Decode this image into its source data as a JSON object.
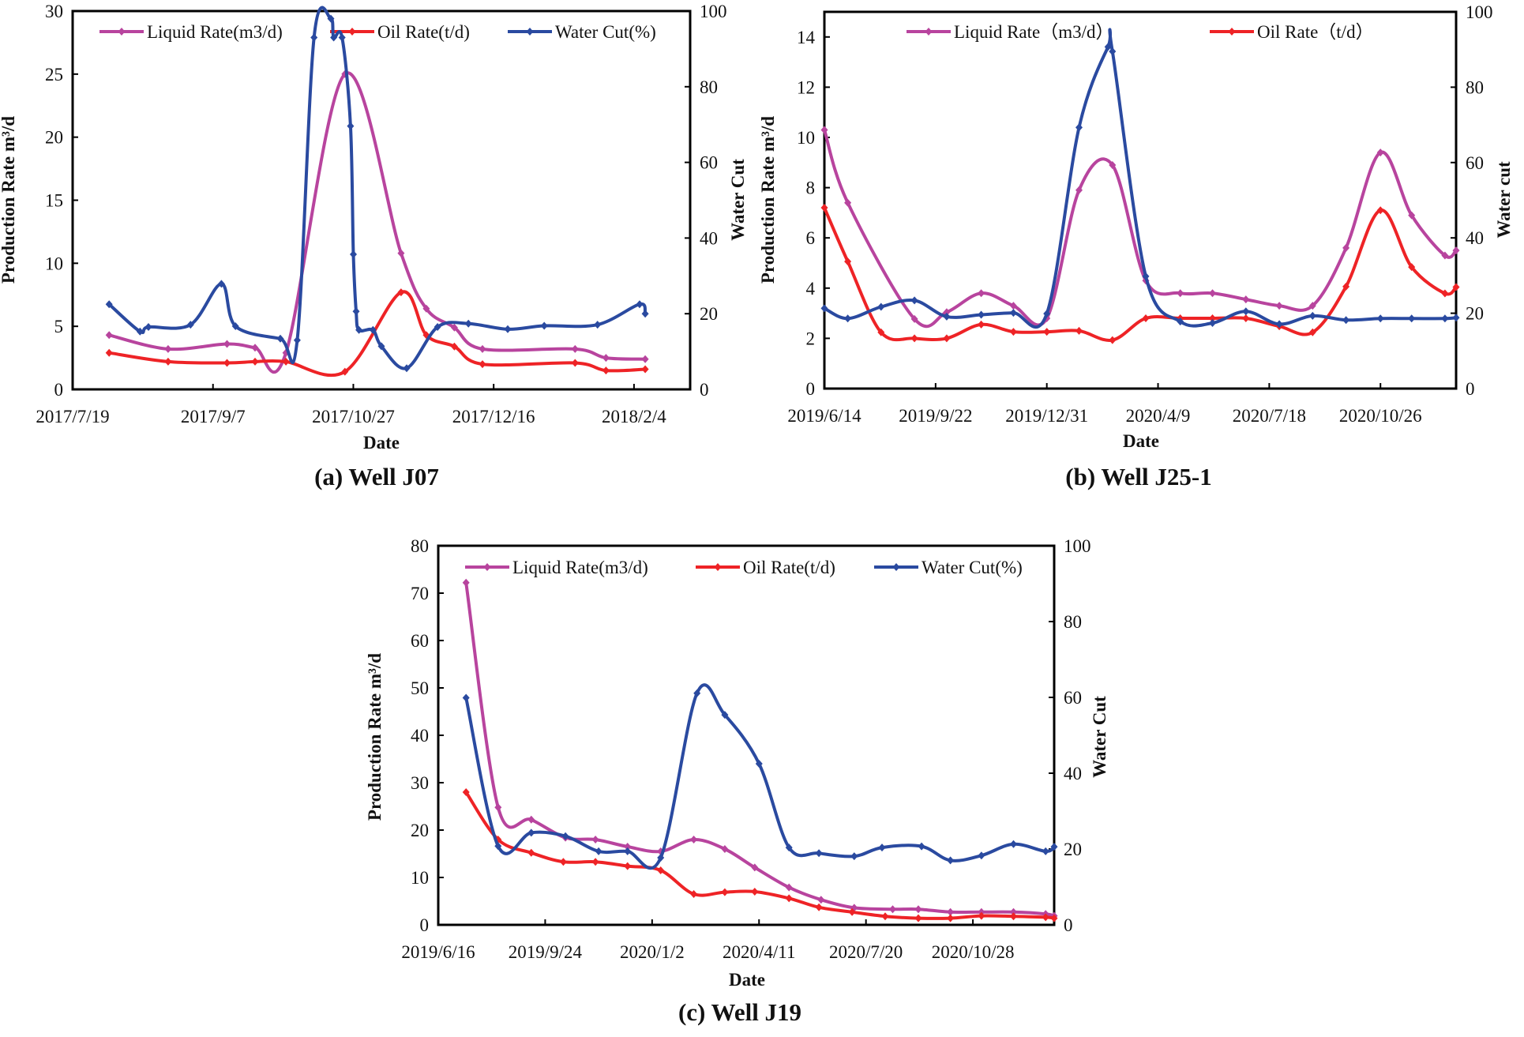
{
  "chart_data": [
    {
      "type": "line",
      "title": "(a) Well J07",
      "xlabel": "Date",
      "ylabel": "Production Rate m³/d",
      "y2label": "Water Cut",
      "xlim": [
        "2017-07-19",
        "2018-02-24"
      ],
      "xticks": [
        "2017-07-19",
        "2017-09-07",
        "2017-10-27",
        "2017-12-16",
        "2018-02-04"
      ],
      "xtick_labels": [
        "2017/7/19",
        "2017/9/7",
        "2017/10/27",
        "2017/12/16",
        "2018/2/4"
      ],
      "ylim": [
        0,
        30
      ],
      "yticks": [
        0,
        5,
        10,
        15,
        20,
        25,
        30
      ],
      "y2lim": [
        0,
        100
      ],
      "y2ticks": [
        0,
        20,
        40,
        60,
        80,
        100
      ],
      "grid": false,
      "legend": "top",
      "series": [
        {
          "name": "Liquid Rate(m3/d)",
          "axis": "left",
          "color": "#b8449e",
          "points": [
            [
              "2017-08-01",
              4.3
            ],
            [
              "2017-08-22",
              3.2
            ],
            [
              "2017-09-12",
              3.6
            ],
            [
              "2017-09-22",
              3.3
            ],
            [
              "2017-10-03",
              2.9
            ],
            [
              "2017-10-24",
              25.0
            ],
            [
              "2017-11-13",
              10.8
            ],
            [
              "2017-11-22",
              6.4
            ],
            [
              "2017-12-02",
              4.9
            ],
            [
              "2017-12-12",
              3.2
            ],
            [
              "2018-01-14",
              3.2
            ],
            [
              "2018-01-25",
              2.5
            ],
            [
              "2018-02-08",
              2.4
            ]
          ]
        },
        {
          "name": "Oil Rate(t/d)",
          "axis": "left",
          "color": "#ee2326",
          "points": [
            [
              "2017-08-01",
              2.9
            ],
            [
              "2017-08-22",
              2.2
            ],
            [
              "2017-09-12",
              2.1
            ],
            [
              "2017-09-22",
              2.2
            ],
            [
              "2017-10-03",
              2.2
            ],
            [
              "2017-10-24",
              1.4
            ],
            [
              "2017-11-13",
              7.7
            ],
            [
              "2017-11-22",
              4.3
            ],
            [
              "2017-12-02",
              3.4
            ],
            [
              "2017-12-12",
              2.0
            ],
            [
              "2018-01-14",
              2.1
            ],
            [
              "2018-01-25",
              1.5
            ],
            [
              "2018-02-08",
              1.6
            ]
          ]
        },
        {
          "name": "Water Cut(%)",
          "axis": "right",
          "color": "#2a4aa0",
          "points": [
            [
              "2017-08-01",
              22.5
            ],
            [
              "2017-08-12",
              15.3
            ],
            [
              "2017-08-15",
              16.5
            ],
            [
              "2017-08-30",
              17.1
            ],
            [
              "2017-09-10",
              27.9
            ],
            [
              "2017-09-15",
              16.7
            ],
            [
              "2017-10-01",
              13.4
            ],
            [
              "2017-10-07",
              13.0
            ],
            [
              "2017-10-13",
              93.0
            ],
            [
              "2017-10-19",
              98.0
            ],
            [
              "2017-10-20",
              93.0
            ],
            [
              "2017-10-23",
              93.0
            ],
            [
              "2017-10-26",
              69.6
            ],
            [
              "2017-10-27",
              35.7
            ],
            [
              "2017-10-28",
              20.6
            ],
            [
              "2017-10-29",
              15.7
            ],
            [
              "2017-11-03",
              15.7
            ],
            [
              "2017-11-06",
              11.4
            ],
            [
              "2017-11-15",
              5.6
            ],
            [
              "2017-11-26",
              16.5
            ],
            [
              "2017-12-07",
              17.4
            ],
            [
              "2017-12-21",
              15.9
            ],
            [
              "2018-01-03",
              16.8
            ],
            [
              "2018-01-22",
              17.1
            ],
            [
              "2018-02-06",
              22.5
            ],
            [
              "2018-02-08",
              20.0
            ]
          ]
        }
      ]
    },
    {
      "type": "line",
      "title": "(b) Well J25-1",
      "xlabel": "Date",
      "ylabel": "Production Rate m³/d",
      "y2label": "Water cut",
      "xlim": [
        "2019-06-14",
        "2021-01-02"
      ],
      "xticks": [
        "2019-06-14",
        "2019-09-22",
        "2019-12-31",
        "2020-04-09",
        "2020-07-18",
        "2020-10-26"
      ],
      "xtick_labels": [
        "2019/6/14",
        "2019/9/22",
        "2019/12/31",
        "2020/4/9",
        "2020/7/18",
        "2020/10/26"
      ],
      "ylim": [
        0,
        15
      ],
      "yticks": [
        0,
        2,
        4,
        6,
        8,
        10,
        12,
        14
      ],
      "y2lim": [
        0,
        100
      ],
      "y2ticks": [
        0,
        20,
        40,
        60,
        80,
        100
      ],
      "grid": false,
      "legend": "top",
      "series": [
        {
          "name": "Liquid Rate（m3/d）",
          "axis": "left",
          "color": "#b8449e",
          "points": [
            [
              "2019-06-14",
              10.3
            ],
            [
              "2019-07-05",
              7.4
            ],
            [
              "2019-09-03",
              2.77
            ],
            [
              "2019-10-02",
              3.04
            ],
            [
              "2019-11-02",
              3.8
            ],
            [
              "2019-12-01",
              3.3
            ],
            [
              "2019-12-31",
              2.8
            ],
            [
              "2020-01-29",
              7.9
            ],
            [
              "2020-02-28",
              8.9
            ],
            [
              "2020-03-29",
              4.3
            ],
            [
              "2020-04-29",
              3.8
            ],
            [
              "2020-05-28",
              3.8
            ],
            [
              "2020-06-27",
              3.55
            ],
            [
              "2020-07-27",
              3.3
            ],
            [
              "2020-08-26",
              3.3
            ],
            [
              "2020-09-25",
              5.6
            ],
            [
              "2020-10-26",
              9.4
            ],
            [
              "2020-11-23",
              6.9
            ],
            [
              "2020-12-23",
              5.3
            ],
            [
              "2021-01-02",
              5.5
            ]
          ]
        },
        {
          "name": "Oil Rate（t/d）",
          "axis": "left",
          "color": "#ee2326",
          "points": [
            [
              "2019-06-14",
              7.2
            ],
            [
              "2019-07-05",
              5.06
            ],
            [
              "2019-08-04",
              2.24
            ],
            [
              "2019-09-03",
              2.0
            ],
            [
              "2019-10-02",
              2.0
            ],
            [
              "2019-11-02",
              2.55
            ],
            [
              "2019-12-01",
              2.26
            ],
            [
              "2019-12-31",
              2.26
            ],
            [
              "2020-01-29",
              2.3
            ],
            [
              "2020-02-28",
              1.93
            ],
            [
              "2020-03-29",
              2.8
            ],
            [
              "2020-04-29",
              2.8
            ],
            [
              "2020-05-28",
              2.8
            ],
            [
              "2020-06-27",
              2.8
            ],
            [
              "2020-07-27",
              2.48
            ],
            [
              "2020-08-26",
              2.24
            ],
            [
              "2020-09-25",
              4.06
            ],
            [
              "2020-10-26",
              7.1
            ],
            [
              "2020-11-23",
              4.84
            ],
            [
              "2020-12-23",
              3.79
            ],
            [
              "2021-01-02",
              4.04
            ]
          ]
        },
        {
          "axis": "right",
          "color": "#2a4aa0",
          "points": [
            [
              "2019-06-14",
              21.3
            ],
            [
              "2019-07-05",
              18.6
            ],
            [
              "2019-08-04",
              21.7
            ],
            [
              "2019-09-03",
              23.4
            ],
            [
              "2019-10-02",
              19.1
            ],
            [
              "2019-11-02",
              19.6
            ],
            [
              "2019-12-01",
              20.1
            ],
            [
              "2019-12-31",
              19.9
            ],
            [
              "2020-01-29",
              69.3
            ],
            [
              "2020-02-24",
              90.7
            ],
            [
              "2020-02-28",
              89.5
            ],
            [
              "2020-03-29",
              29.8
            ],
            [
              "2020-04-29",
              17.8
            ],
            [
              "2020-05-28",
              17.4
            ],
            [
              "2020-06-27",
              20.5
            ],
            [
              "2020-07-27",
              17.1
            ],
            [
              "2020-08-26",
              19.3
            ],
            [
              "2020-09-25",
              18.2
            ],
            [
              "2020-10-26",
              18.6
            ],
            [
              "2020-11-23",
              18.6
            ],
            [
              "2020-12-23",
              18.6
            ],
            [
              "2021-01-02",
              18.8
            ]
          ]
        }
      ]
    },
    {
      "type": "line",
      "title": "(c) Well J19",
      "xlabel": "Date",
      "ylabel": "Production Rate m³/d",
      "y2label": "Water Cut",
      "xlim": [
        "2019-06-16",
        "2021-01-12"
      ],
      "xticks": [
        "2019-06-16",
        "2019-09-24",
        "2020-01-02",
        "2020-04-11",
        "2020-07-20",
        "2020-10-28"
      ],
      "xtick_labels": [
        "2019/6/16",
        "2019/9/24",
        "2020/1/2",
        "2020/4/11",
        "2020/7/20",
        "2020/10/28"
      ],
      "ylim": [
        0,
        80
      ],
      "yticks": [
        0,
        10,
        20,
        30,
        40,
        50,
        60,
        70,
        80
      ],
      "y2lim": [
        0,
        100
      ],
      "y2ticks": [
        0,
        20,
        40,
        60,
        80,
        100
      ],
      "grid": false,
      "legend": "top",
      "series": [
        {
          "name": "Liquid Rate(m3/d)",
          "axis": "left",
          "color": "#b8449e",
          "points": [
            [
              "2019-07-12",
              72.2
            ],
            [
              "2019-08-11",
              24.8
            ],
            [
              "2019-09-11",
              22.2
            ],
            [
              "2019-10-13",
              18.4
            ],
            [
              "2019-11-10",
              18.0
            ],
            [
              "2019-12-10",
              16.5
            ],
            [
              "2020-01-10",
              15.5
            ],
            [
              "2020-02-10",
              18.0
            ],
            [
              "2020-03-10",
              16.0
            ],
            [
              "2020-04-07",
              12.1
            ],
            [
              "2020-05-09",
              7.9
            ],
            [
              "2020-06-08",
              5.3
            ],
            [
              "2020-07-09",
              3.6
            ],
            [
              "2020-08-14",
              3.3
            ],
            [
              "2020-09-07",
              3.3
            ],
            [
              "2020-10-07",
              2.7
            ],
            [
              "2020-11-05",
              2.7
            ],
            [
              "2020-12-05",
              2.7
            ],
            [
              "2021-01-04",
              2.3
            ],
            [
              "2021-01-12",
              1.9
            ]
          ]
        },
        {
          "name": "Oil Rate(t/d)",
          "axis": "left",
          "color": "#ee2326",
          "points": [
            [
              "2019-07-12",
              28.0
            ],
            [
              "2019-08-11",
              18.0
            ],
            [
              "2019-09-11",
              15.2
            ],
            [
              "2019-10-11",
              13.3
            ],
            [
              "2019-11-10",
              13.3
            ],
            [
              "2019-12-10",
              12.4
            ],
            [
              "2020-01-10",
              11.5
            ],
            [
              "2020-02-10",
              6.5
            ],
            [
              "2020-03-10",
              6.9
            ],
            [
              "2020-04-07",
              7.0
            ],
            [
              "2020-05-09",
              5.6
            ],
            [
              "2020-06-06",
              3.7
            ],
            [
              "2020-07-07",
              2.7
            ],
            [
              "2020-08-07",
              1.8
            ],
            [
              "2020-09-07",
              1.4
            ],
            [
              "2020-10-07",
              1.4
            ],
            [
              "2020-11-05",
              1.9
            ],
            [
              "2020-12-05",
              1.8
            ],
            [
              "2021-01-04",
              1.6
            ],
            [
              "2021-01-12",
              1.4
            ]
          ]
        },
        {
          "name": "Water Cut(%)",
          "axis": "right",
          "color": "#2a4aa0",
          "points": [
            [
              "2019-07-12",
              59.9
            ],
            [
              "2019-08-11",
              20.8
            ],
            [
              "2019-09-11",
              24.3
            ],
            [
              "2019-10-13",
              23.4
            ],
            [
              "2019-11-13",
              19.4
            ],
            [
              "2019-12-10",
              19.4
            ],
            [
              "2020-01-10",
              17.7
            ],
            [
              "2020-02-13",
              61.1
            ],
            [
              "2020-03-10",
              55.4
            ],
            [
              "2020-04-11",
              42.5
            ],
            [
              "2020-05-09",
              20.4
            ],
            [
              "2020-06-06",
              18.9
            ],
            [
              "2020-07-09",
              18.1
            ],
            [
              "2020-08-04",
              20.4
            ],
            [
              "2020-09-10",
              20.7
            ],
            [
              "2020-10-07",
              17.0
            ],
            [
              "2020-11-05",
              18.3
            ],
            [
              "2020-12-05",
              21.3
            ],
            [
              "2021-01-04",
              19.4
            ],
            [
              "2021-01-12",
              20.6
            ]
          ]
        }
      ]
    }
  ]
}
